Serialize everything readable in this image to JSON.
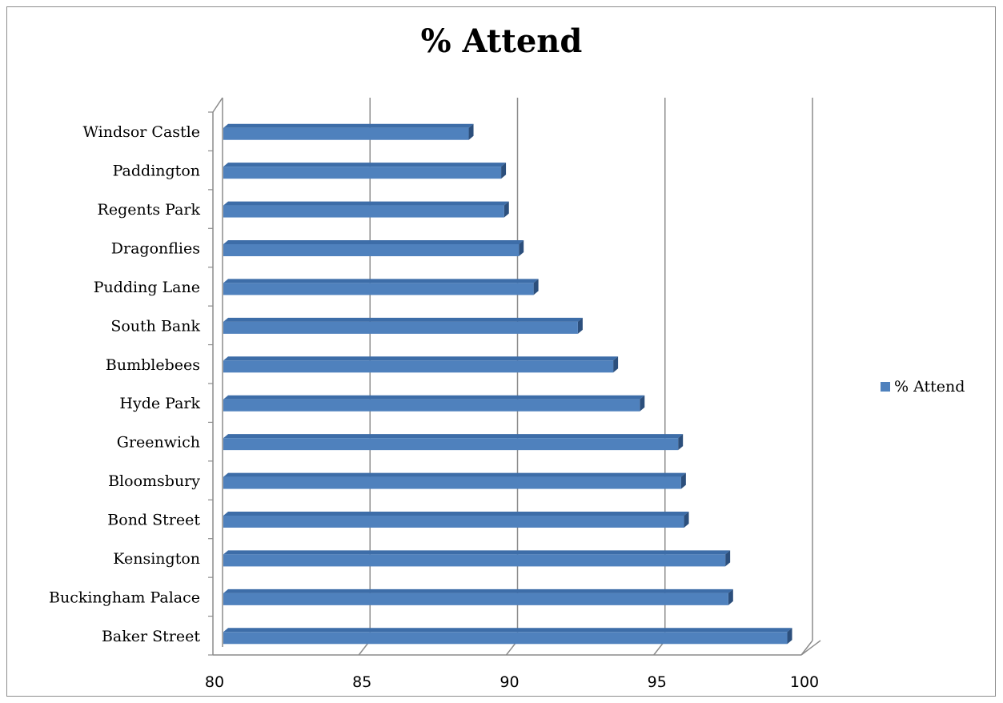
{
  "chart_data": {
    "type": "bar",
    "orientation": "horizontal",
    "title": "% Attend",
    "xlabel": "",
    "ylabel": "",
    "categories": [
      "Windsor Castle",
      "Paddington",
      "Regents Park",
      "Dragonflies",
      "Pudding Lane",
      "South Bank",
      "Bumblebees",
      "Hyde Park",
      "Greenwich",
      "Bloomsbury",
      "Bond Street",
      "Kensington",
      "Buckingham Palace",
      "Baker Street"
    ],
    "series": [
      {
        "name": "% Attend",
        "color": "#4f81bd",
        "values": [
          88.4,
          89.5,
          89.6,
          90.1,
          90.6,
          92.1,
          93.3,
          94.2,
          95.5,
          95.6,
          95.7,
          97.1,
          97.2,
          99.2
        ]
      }
    ],
    "xlim": [
      80,
      100
    ],
    "xticks": [
      "80",
      "85",
      "90",
      "95",
      "100"
    ],
    "grid": true,
    "legend_position": "right",
    "style": "3d"
  }
}
